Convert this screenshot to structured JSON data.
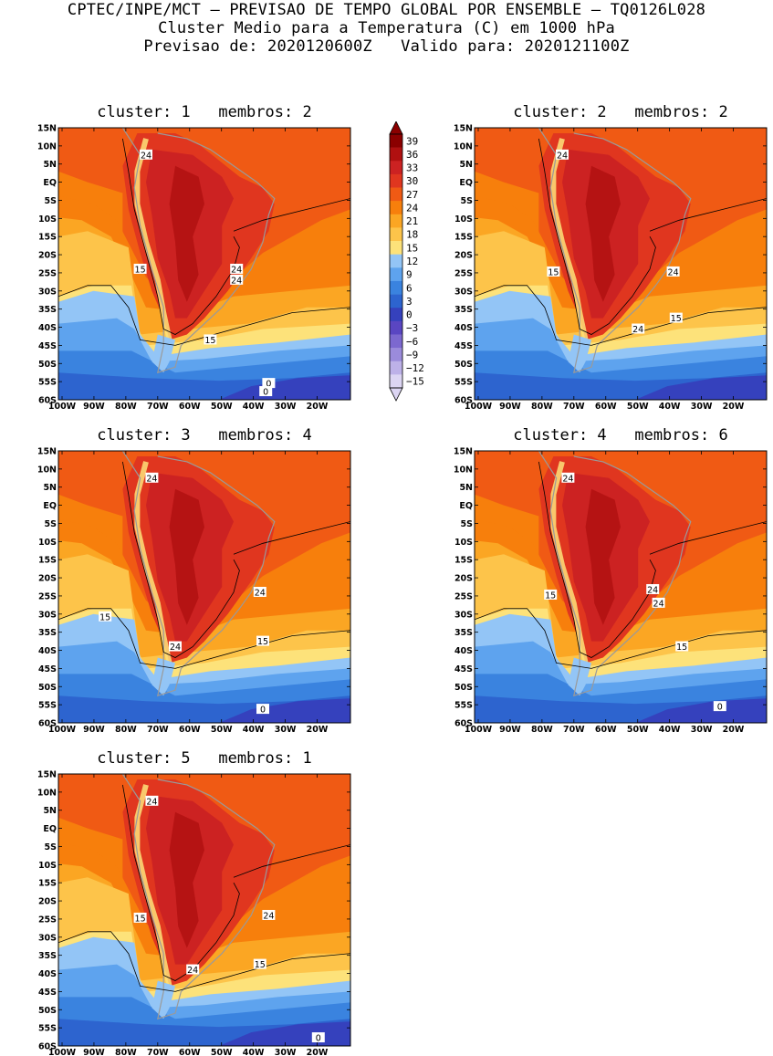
{
  "header": {
    "line1": "CPTEC/INPE/MCT – PREVISAO DE TEMPO GLOBAL POR ENSEMBLE – TQ0126L028",
    "line2": "Cluster Medio para a Temperatura (C) em 1000 hPa",
    "line3": "Previsao de: 2020120600Z   Valido para: 2020121100Z"
  },
  "axes": {
    "lat_labels": [
      "15N",
      "10N",
      "5N",
      "EQ",
      "5S",
      "10S",
      "15S",
      "20S",
      "25S",
      "30S",
      "35S",
      "40S",
      "45S",
      "50S",
      "55S",
      "60S"
    ],
    "lon_labels": [
      "100W",
      "90W",
      "80W",
      "70W",
      "60W",
      "50W",
      "40W",
      "30W",
      "20W"
    ]
  },
  "colorbar": {
    "labels": [
      "39",
      "36",
      "33",
      "30",
      "27",
      "24",
      "21",
      "18",
      "15",
      "12",
      "9",
      "6",
      "3",
      "0",
      "−3",
      "−6",
      "−9",
      "−12",
      "−15"
    ],
    "colors": [
      "#8b0000",
      "#b01010",
      "#cc2222",
      "#e0361f",
      "#f05a14",
      "#f77f0c",
      "#fba623",
      "#fdc44a",
      "#fde27a",
      "#93c5f6",
      "#5ea3ee",
      "#3a83df",
      "#2d64cf",
      "#3541bd",
      "#5a46c2",
      "#7c68cf",
      "#9b8bdb",
      "#bdb1e8",
      "#dcd5f3"
    ]
  },
  "panels": [
    {
      "title": "cluster: 1   membros: 2",
      "contour_labels": [
        {
          "text": "24"
        },
        {
          "text": "24"
        },
        {
          "text": "24"
        },
        {
          "text": "15"
        },
        {
          "text": "15"
        },
        {
          "text": "0"
        },
        {
          "text": "0"
        }
      ]
    },
    {
      "title": "cluster: 2   membros: 2",
      "contour_labels": [
        {
          "text": "24"
        },
        {
          "text": "24"
        },
        {
          "text": "24"
        },
        {
          "text": "15"
        },
        {
          "text": "15"
        }
      ]
    },
    {
      "title": "cluster: 3   membros: 4",
      "contour_labels": [
        {
          "text": "24"
        },
        {
          "text": "24"
        },
        {
          "text": "24"
        },
        {
          "text": "15"
        },
        {
          "text": "15"
        },
        {
          "text": "0"
        }
      ]
    },
    {
      "title": "cluster: 4   membros: 6",
      "contour_labels": [
        {
          "text": "24"
        },
        {
          "text": "24"
        },
        {
          "text": "24"
        },
        {
          "text": "15"
        },
        {
          "text": "15"
        },
        {
          "text": "0"
        }
      ]
    },
    {
      "title": "cluster: 5   membros: 1",
      "contour_labels": [
        {
          "text": "24"
        },
        {
          "text": "24"
        },
        {
          "text": "24"
        },
        {
          "text": "15"
        },
        {
          "text": "15"
        },
        {
          "text": "0"
        }
      ]
    }
  ]
}
